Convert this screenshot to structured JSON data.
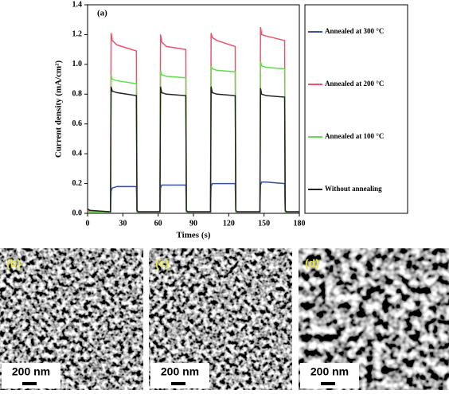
{
  "chart_data": {
    "type": "line",
    "annotation": "(a)",
    "y_label": "Current density (mA/cm²)",
    "x_label": "Times (s)",
    "x": [
      0,
      2,
      19.5,
      20,
      21,
      25,
      41.5,
      42,
      43,
      61.5,
      62,
      63,
      67,
      83.5,
      84,
      85,
      104.5,
      105,
      106,
      110,
      125.5,
      126,
      127,
      146.5,
      147,
      148,
      152,
      167.5,
      168,
      169,
      180
    ],
    "series": [
      {
        "name": "Annealed at 300 °C",
        "color": "#3a4fa0",
        "values": [
          0.03,
          0.01,
          0.01,
          0.15,
          0.17,
          0.18,
          0.18,
          0.01,
          0.01,
          0.01,
          0.17,
          0.19,
          0.19,
          0.19,
          0.01,
          0.01,
          0.01,
          0.18,
          0.2,
          0.2,
          0.2,
          0.01,
          0.01,
          0.01,
          0.19,
          0.21,
          0.21,
          0.2,
          0.01,
          0.01,
          0.01
        ]
      },
      {
        "name": "Annealed at 200 °C",
        "color": "#f0506a",
        "values": [
          0.02,
          0.01,
          0.01,
          1.21,
          1.16,
          1.13,
          1.09,
          0.01,
          0.01,
          0.01,
          1.2,
          1.15,
          1.12,
          1.1,
          0.01,
          0.01,
          0.01,
          1.21,
          1.18,
          1.16,
          1.12,
          0.01,
          0.01,
          0.01,
          1.25,
          1.2,
          1.19,
          1.16,
          0.01,
          0.01,
          0.01
        ]
      },
      {
        "name": "Annealed  at 100 °C",
        "color": "#5ee04a",
        "values": [
          0.01,
          0.01,
          0.01,
          0.93,
          0.9,
          0.89,
          0.87,
          0.01,
          0.01,
          0.01,
          0.96,
          0.93,
          0.92,
          0.91,
          0.01,
          0.01,
          0.01,
          0.99,
          0.97,
          0.96,
          0.95,
          0.01,
          0.01,
          0.01,
          1.02,
          0.99,
          0.98,
          0.97,
          0.01,
          0.01,
          0.01
        ]
      },
      {
        "name": "Without annealing",
        "color": "#222222",
        "values": [
          0.03,
          0.02,
          0.01,
          0.85,
          0.82,
          0.81,
          0.79,
          0.02,
          0.01,
          0.01,
          0.85,
          0.81,
          0.8,
          0.79,
          0.02,
          0.01,
          0.01,
          0.85,
          0.81,
          0.8,
          0.79,
          0.02,
          0.01,
          0.01,
          0.84,
          0.8,
          0.79,
          0.78,
          0.02,
          0.01,
          0.01
        ]
      }
    ],
    "xlim": [
      0,
      180
    ],
    "xticks": [
      0,
      30,
      60,
      90,
      120,
      150,
      180
    ],
    "ylim": [
      0,
      1.4
    ],
    "yticks": [
      {
        "value": 0,
        "label": "0.0"
      },
      0.2,
      0.4,
      0.6,
      0.8,
      {
        "value": 1,
        "label": "1.0"
      },
      1.2,
      1.4
    ]
  },
  "panels": [
    {
      "label": "(b)",
      "scale": "200 nm"
    },
    {
      "label": "(c)",
      "scale": "200 nm"
    },
    {
      "label": "(d)",
      "scale": "200 nm"
    }
  ]
}
